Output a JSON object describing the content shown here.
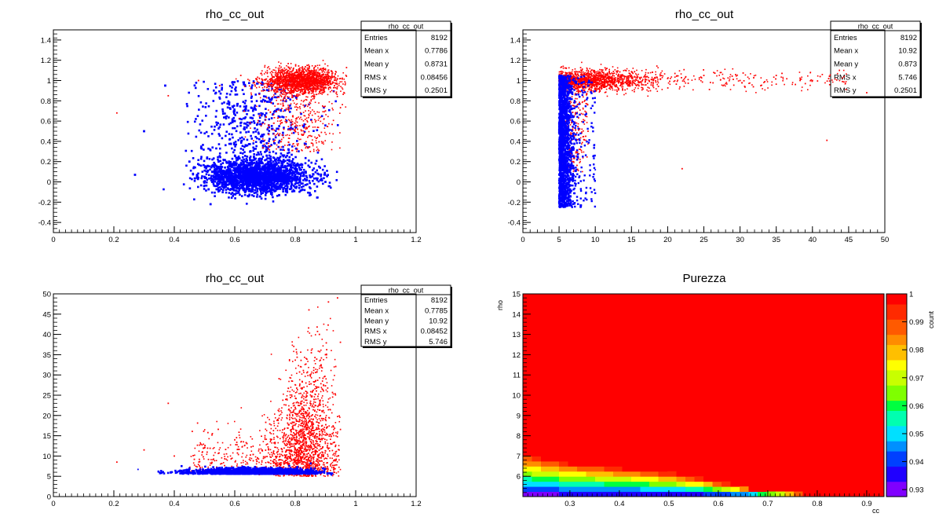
{
  "chart_data": [
    {
      "type": "scatter",
      "title": "rho_cc_out",
      "xlabel": "",
      "ylabel": "",
      "xlim": [
        0,
        1.2
      ],
      "ylim": [
        -0.5,
        1.5
      ],
      "xticks": [
        {
          "v": 0,
          "label": "0"
        },
        {
          "v": 0.2,
          "label": "0.2"
        },
        {
          "v": 0.4,
          "label": "0.4"
        },
        {
          "v": 0.6,
          "label": "0.6"
        },
        {
          "v": 0.8,
          "label": "0.8"
        },
        {
          "v": 1,
          "label": "1"
        },
        {
          "v": 1.2,
          "label": "1.2"
        }
      ],
      "yticks": [
        {
          "v": -0.4,
          "label": "-0.4"
        },
        {
          "v": -0.2,
          "label": "-0.2"
        },
        {
          "v": 0,
          "label": "0"
        },
        {
          "v": 0.2,
          "label": "0.2"
        },
        {
          "v": 0.4,
          "label": "0.4"
        },
        {
          "v": 0.6,
          "label": "0.6"
        },
        {
          "v": 0.8,
          "label": "0.8"
        },
        {
          "v": 1,
          "label": "1"
        },
        {
          "v": 1.2,
          "label": "1.2"
        },
        {
          "v": 1.4,
          "label": "1.4"
        }
      ],
      "stats": {
        "name": "rho_cc_out",
        "rows": [
          [
            "Entries",
            "8192"
          ],
          [
            "Mean x",
            "0.7786"
          ],
          [
            "Mean y",
            "0.8731"
          ],
          [
            "RMS x",
            "0.08456"
          ],
          [
            "RMS y",
            "0.2501"
          ]
        ]
      },
      "series": [
        {
          "name": "red",
          "color": "#ff0000",
          "points": [
            [
              0.21,
              0.68
            ],
            [
              0.38,
              0.85
            ],
            [
              0.48,
              1.0
            ],
            [
              0.55,
              0.95
            ],
            [
              0.62,
              1.05
            ],
            [
              0.68,
              0.98
            ],
            [
              0.72,
              1.02
            ],
            [
              0.78,
              1.05
            ],
            [
              0.82,
              1.0
            ],
            [
              0.85,
              1.03
            ],
            [
              0.88,
              0.98
            ],
            [
              0.9,
              1.06
            ],
            [
              0.93,
              0.95
            ],
            [
              0.95,
              1.02
            ],
            [
              0.8,
              0.5
            ],
            [
              0.85,
              0.3
            ],
            [
              0.75,
              0.6
            ],
            [
              0.9,
              0.7
            ]
          ]
        },
        {
          "name": "blue",
          "color": "#0000ff",
          "points": [
            [
              0.27,
              0.07
            ],
            [
              0.3,
              0.5
            ],
            [
              0.37,
              0.95
            ],
            [
              0.45,
              0.2
            ],
            [
              0.5,
              0.05
            ],
            [
              0.55,
              0.1
            ],
            [
              0.6,
              0.0
            ],
            [
              0.65,
              0.08
            ],
            [
              0.7,
              0.05
            ],
            [
              0.75,
              0.1
            ],
            [
              0.8,
              0.02
            ],
            [
              0.85,
              0.05
            ],
            [
              0.9,
              0.0
            ],
            [
              0.6,
              0.6
            ],
            [
              0.7,
              0.8
            ],
            [
              0.52,
              -0.22
            ]
          ]
        }
      ]
    },
    {
      "type": "scatter",
      "title": "rho_cc_out",
      "xlabel": "",
      "ylabel": "",
      "xlim": [
        0,
        50
      ],
      "ylim": [
        -0.5,
        1.5
      ],
      "xticks": [
        {
          "v": 0,
          "label": "0"
        },
        {
          "v": 5,
          "label": "5"
        },
        {
          "v": 10,
          "label": "10"
        },
        {
          "v": 15,
          "label": "15"
        },
        {
          "v": 20,
          "label": "20"
        },
        {
          "v": 25,
          "label": "25"
        },
        {
          "v": 30,
          "label": "30"
        },
        {
          "v": 35,
          "label": "35"
        },
        {
          "v": 40,
          "label": "40"
        },
        {
          "v": 45,
          "label": "45"
        },
        {
          "v": 50,
          "label": "50"
        }
      ],
      "yticks": [
        {
          "v": -0.4,
          "label": "-0.4"
        },
        {
          "v": -0.2,
          "label": "-0.2"
        },
        {
          "v": 0,
          "label": "0"
        },
        {
          "v": 0.2,
          "label": "0.2"
        },
        {
          "v": 0.4,
          "label": "0.4"
        },
        {
          "v": 0.6,
          "label": "0.6"
        },
        {
          "v": 0.8,
          "label": "0.8"
        },
        {
          "v": 1,
          "label": "1"
        },
        {
          "v": 1.2,
          "label": "1.2"
        },
        {
          "v": 1.4,
          "label": "1.4"
        }
      ],
      "stats": {
        "name": "rho_cc_out",
        "rows": [
          [
            "Entries",
            "8192"
          ],
          [
            "Mean x",
            "10.92"
          ],
          [
            "Mean y",
            "0.873"
          ],
          [
            "RMS x",
            "5.746"
          ],
          [
            "RMS y",
            "0.2501"
          ]
        ]
      },
      "series": [
        {
          "name": "red",
          "color": "#ff0000",
          "points": [
            [
              5,
              1.0
            ],
            [
              6,
              1.05
            ],
            [
              8,
              1.02
            ],
            [
              10,
              1.0
            ],
            [
              12,
              1.03
            ],
            [
              15,
              1.05
            ],
            [
              18,
              1.0
            ],
            [
              20,
              1.02
            ],
            [
              25,
              1.05
            ],
            [
              30,
              1.0
            ],
            [
              35,
              1.05
            ],
            [
              40,
              1.0
            ],
            [
              47.5,
              0.88
            ],
            [
              42,
              0.41
            ],
            [
              22,
              0.13
            ],
            [
              7,
              0.2
            ],
            [
              9,
              0.5
            ]
          ]
        },
        {
          "name": "blue",
          "color": "#0000ff",
          "points": [
            [
              5,
              1.0
            ],
            [
              5.2,
              0.5
            ],
            [
              5.5,
              0.0
            ],
            [
              6,
              0.3
            ],
            [
              6.5,
              -0.1
            ],
            [
              5.1,
              -0.25
            ],
            [
              7,
              0.15
            ],
            [
              8,
              0.1
            ],
            [
              10,
              0.12
            ]
          ]
        }
      ]
    },
    {
      "type": "scatter",
      "title": "rho_cc_out",
      "xlabel": "",
      "ylabel": "",
      "xlim": [
        0,
        1.2
      ],
      "ylim": [
        0,
        50
      ],
      "xticks": [
        {
          "v": 0,
          "label": "0"
        },
        {
          "v": 0.2,
          "label": "0.2"
        },
        {
          "v": 0.4,
          "label": "0.4"
        },
        {
          "v": 0.6,
          "label": "0.6"
        },
        {
          "v": 0.8,
          "label": "0.8"
        },
        {
          "v": 1,
          "label": "1"
        },
        {
          "v": 1.2,
          "label": "1.2"
        }
      ],
      "yticks": [
        {
          "v": 0,
          "label": "0"
        },
        {
          "v": 5,
          "label": "5"
        },
        {
          "v": 10,
          "label": "10"
        },
        {
          "v": 15,
          "label": "15"
        },
        {
          "v": 20,
          "label": "20"
        },
        {
          "v": 25,
          "label": "25"
        },
        {
          "v": 30,
          "label": "30"
        },
        {
          "v": 35,
          "label": "35"
        },
        {
          "v": 40,
          "label": "40"
        },
        {
          "v": 45,
          "label": "45"
        },
        {
          "v": 50,
          "label": "50"
        }
      ],
      "stats": {
        "name": "rho_cc_out",
        "rows": [
          [
            "Entries",
            "8192"
          ],
          [
            "Mean x",
            "0.7785"
          ],
          [
            "Mean y",
            "10.92"
          ],
          [
            "RMS x",
            "0.08452"
          ],
          [
            "RMS y",
            "5.746"
          ]
        ]
      },
      "series": [
        {
          "name": "red",
          "color": "#ff0000",
          "points": [
            [
              0.21,
              8.5
            ],
            [
              0.3,
              11.5
            ],
            [
              0.38,
              23
            ],
            [
              0.4,
              10
            ],
            [
              0.5,
              12
            ],
            [
              0.6,
              14
            ],
            [
              0.7,
              15
            ],
            [
              0.8,
              22
            ],
            [
              0.85,
              30
            ],
            [
              0.88,
              40
            ],
            [
              0.91,
              48
            ],
            [
              0.94,
              49
            ],
            [
              0.9,
              35
            ],
            [
              0.82,
              18
            ]
          ]
        },
        {
          "name": "blue",
          "color": "#0000ff",
          "points": [
            [
              0.28,
              6.7
            ],
            [
              0.35,
              6.0
            ],
            [
              0.45,
              6.0
            ],
            [
              0.55,
              5.5
            ],
            [
              0.65,
              6.0
            ],
            [
              0.75,
              5.8
            ],
            [
              0.85,
              5.5
            ],
            [
              0.92,
              5.3
            ]
          ]
        }
      ]
    },
    {
      "type": "heatmap",
      "title": "Purezza",
      "xlabel": "cc",
      "ylabel": "rho",
      "xlim": [
        0.205,
        0.935
      ],
      "ylim": [
        5.0,
        15.0
      ],
      "xticks": [
        {
          "v": 0.3,
          "label": "0.3"
        },
        {
          "v": 0.4,
          "label": "0.4"
        },
        {
          "v": 0.5,
          "label": "0.5"
        },
        {
          "v": 0.6,
          "label": "0.6"
        },
        {
          "v": 0.7,
          "label": "0.7"
        },
        {
          "v": 0.8,
          "label": "0.8"
        },
        {
          "v": 0.9,
          "label": "0.9"
        }
      ],
      "yticks": [
        {
          "v": 6,
          "label": "6"
        },
        {
          "v": 7,
          "label": "7"
        },
        {
          "v": 8,
          "label": "8"
        },
        {
          "v": 9,
          "label": "9"
        },
        {
          "v": 10,
          "label": "10"
        },
        {
          "v": 11,
          "label": "11"
        },
        {
          "v": 12,
          "label": "12"
        },
        {
          "v": 13,
          "label": "13"
        },
        {
          "v": 14,
          "label": "14"
        },
        {
          "v": 15,
          "label": "15"
        }
      ],
      "zlabel": "count",
      "zlim": [
        0.9275,
        1.0
      ],
      "zticks": [
        {
          "v": 0.93,
          "label": "0.93"
        },
        {
          "v": 0.94,
          "label": "0.94"
        },
        {
          "v": 0.95,
          "label": "0.95"
        },
        {
          "v": 0.96,
          "label": "0.96"
        },
        {
          "v": 0.97,
          "label": "0.97"
        },
        {
          "v": 0.98,
          "label": "0.98"
        },
        {
          "v": 0.99,
          "label": "0.99"
        },
        {
          "v": 1,
          "label": "1"
        }
      ],
      "boundary": [
        [
          0.205,
          7.25
        ],
        [
          0.25,
          7.0
        ],
        [
          0.3,
          6.75
        ],
        [
          0.4,
          6.5
        ],
        [
          0.5,
          6.25
        ],
        [
          0.55,
          6.0
        ],
        [
          0.6,
          5.75
        ],
        [
          0.65,
          5.5
        ],
        [
          0.7,
          5.25
        ],
        [
          0.8,
          5.1
        ],
        [
          0.935,
          5.0
        ]
      ],
      "depth_levels": [
        0.999,
        0.995,
        0.99,
        0.985,
        0.98,
        0.975,
        0.97,
        0.965,
        0.96,
        0.955,
        0.95,
        0.945,
        0.94,
        0.935,
        0.93
      ]
    }
  ]
}
